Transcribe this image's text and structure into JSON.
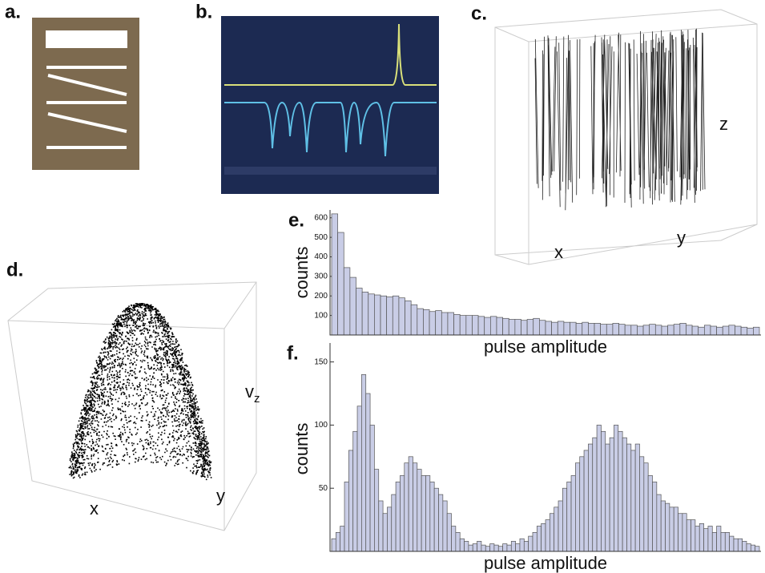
{
  "panels": {
    "a": {
      "label": "a."
    },
    "b": {
      "label": "b."
    },
    "c": {
      "label": "c.",
      "x": "x",
      "y": "y",
      "z": "z"
    },
    "d": {
      "label": "d.",
      "x": "x",
      "y": "y",
      "z": "v",
      "z_sub": "z"
    }
  },
  "chart_data": [
    {
      "type": "bar",
      "panel_label": "e.",
      "xlabel": "pulse amplitude",
      "ylabel": "counts",
      "color": "#c9cde6",
      "values": [
        620,
        525,
        345,
        295,
        240,
        220,
        210,
        205,
        200,
        195,
        200,
        190,
        175,
        155,
        135,
        130,
        120,
        125,
        115,
        115,
        105,
        100,
        100,
        100,
        95,
        90,
        95,
        90,
        85,
        80,
        80,
        75,
        80,
        85,
        75,
        70,
        65,
        70,
        65,
        65,
        60,
        65,
        60,
        60,
        55,
        55,
        60,
        55,
        50,
        50,
        45,
        50,
        55,
        50,
        45,
        50,
        55,
        60,
        50,
        45,
        40,
        50,
        45,
        40,
        45,
        50,
        45,
        40,
        35,
        40
      ],
      "ylim": [
        0,
        640
      ],
      "yticks": [
        100,
        200,
        300,
        400,
        500,
        600
      ]
    },
    {
      "type": "bar",
      "panel_label": "f.",
      "xlabel": "pulse amplitude",
      "ylabel": "counts",
      "color": "#c9cde6",
      "values": [
        10,
        15,
        20,
        55,
        80,
        95,
        115,
        140,
        125,
        100,
        65,
        40,
        30,
        35,
        45,
        55,
        60,
        70,
        75,
        70,
        65,
        60,
        60,
        55,
        50,
        45,
        40,
        30,
        20,
        15,
        10,
        8,
        5,
        6,
        8,
        5,
        4,
        6,
        5,
        4,
        6,
        5,
        8,
        6,
        10,
        8,
        12,
        15,
        20,
        22,
        25,
        30,
        35,
        40,
        50,
        55,
        60,
        70,
        75,
        80,
        85,
        90,
        100,
        95,
        85,
        90,
        100,
        95,
        90,
        85,
        80,
        85,
        75,
        70,
        60,
        55,
        45,
        40,
        38,
        35,
        35,
        30,
        30,
        25,
        25,
        20,
        22,
        18,
        20,
        15,
        20,
        15,
        15,
        12,
        10,
        10,
        8,
        6,
        5,
        4
      ],
      "ylim": [
        0,
        165
      ],
      "yticks": [
        50,
        100,
        150
      ]
    }
  ]
}
